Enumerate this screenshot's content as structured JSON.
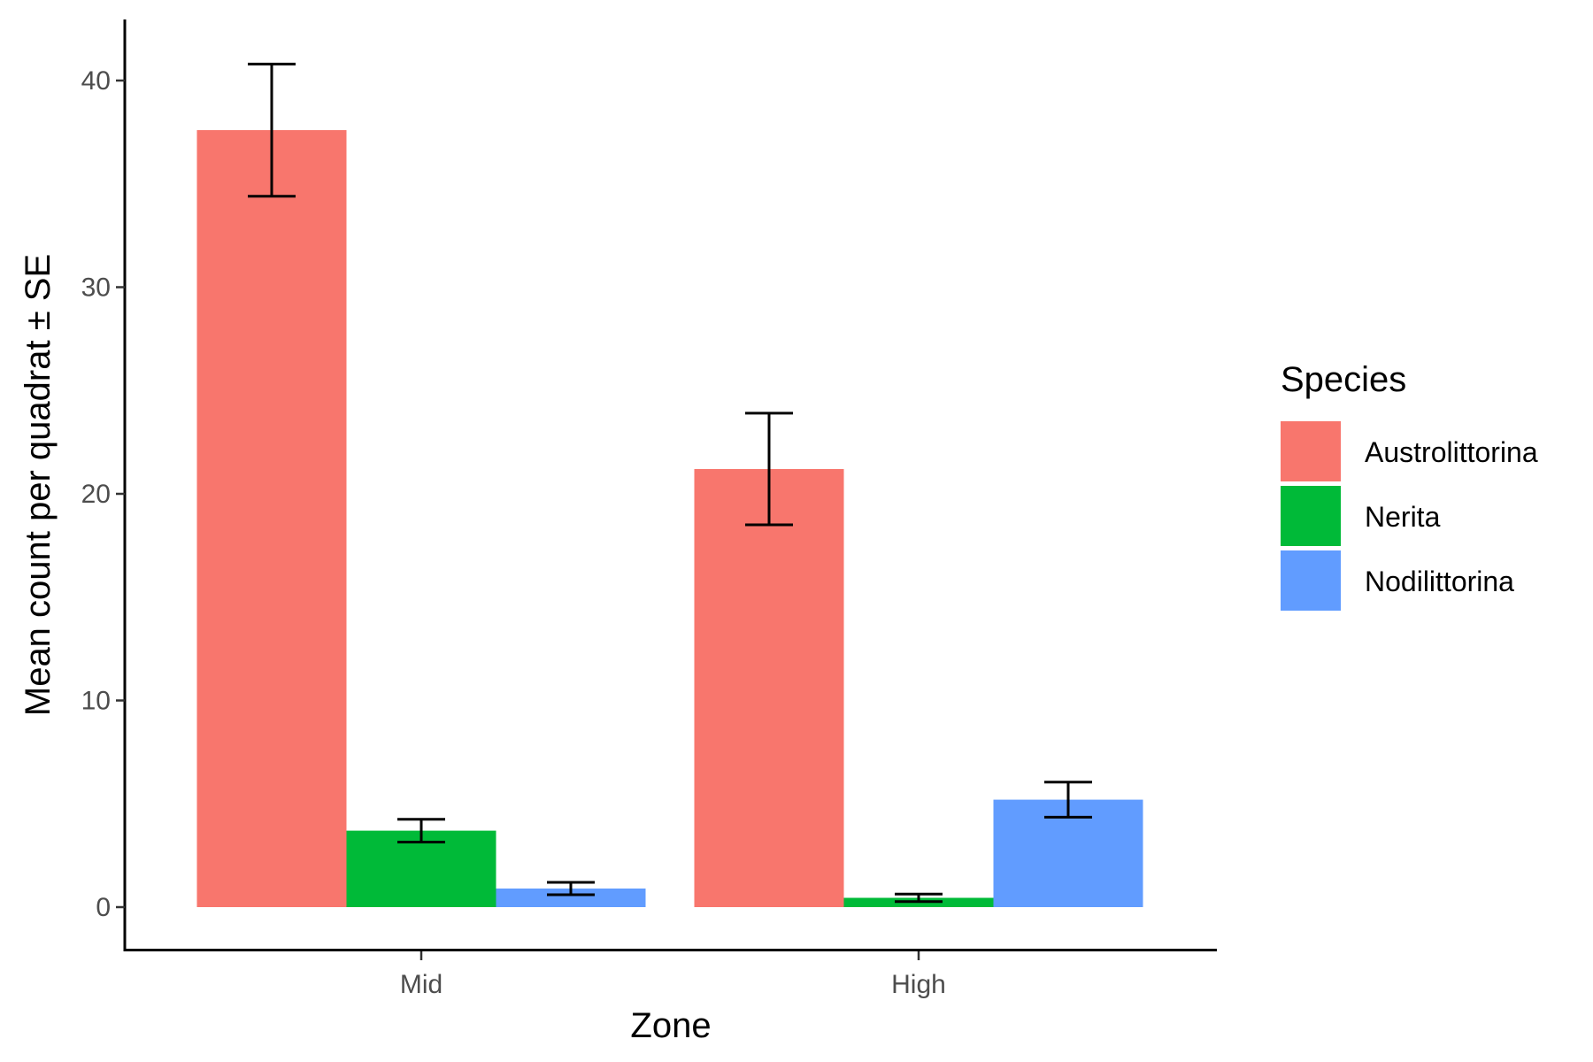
{
  "chart_data": {
    "type": "bar",
    "title": "",
    "xlabel": "Zone",
    "ylabel": "Mean count per quadrat ± SE",
    "categories": [
      "Mid",
      "High"
    ],
    "ylim": [
      0,
      42
    ],
    "yticks": [
      0,
      10,
      20,
      30,
      40
    ],
    "grid": false,
    "legend": {
      "title": "Species",
      "placement": "right"
    },
    "series": [
      {
        "name": "Austrolittorina",
        "color": "#F8766D",
        "values": [
          37.6,
          21.2
        ],
        "se": [
          3.2,
          2.7
        ]
      },
      {
        "name": "Nerita",
        "color": "#00BA38",
        "values": [
          3.7,
          0.45
        ],
        "se": [
          0.55,
          0.18
        ]
      },
      {
        "name": "Nodilittorina",
        "color": "#619CFF",
        "values": [
          0.9,
          5.2
        ],
        "se": [
          0.3,
          0.85
        ]
      }
    ]
  }
}
